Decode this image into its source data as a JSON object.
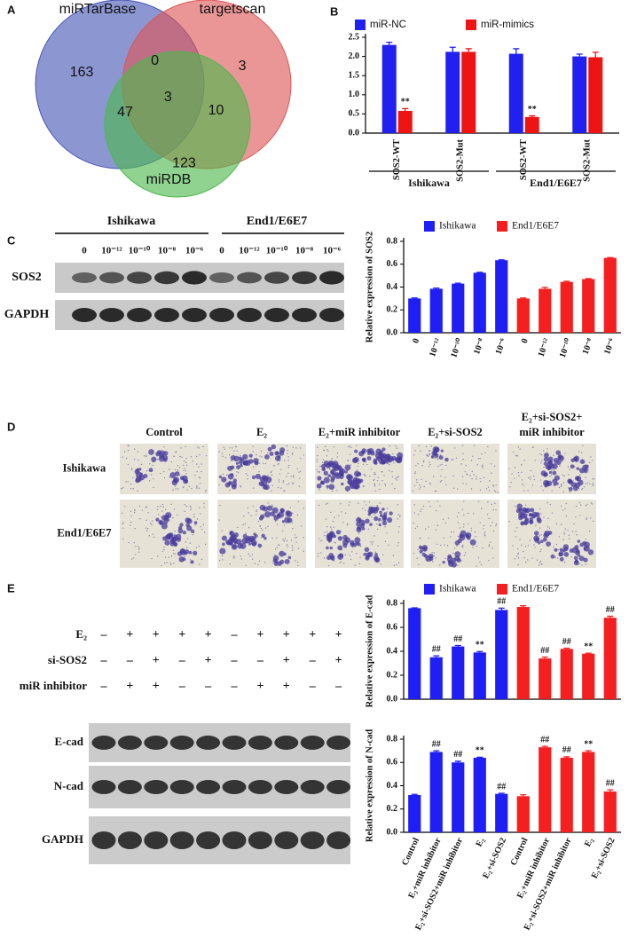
{
  "figure": {
    "panel_labels": [
      "A",
      "B",
      "C",
      "D",
      "E"
    ],
    "blot_c": {
      "groups": [
        "Ishikawa",
        "End1/E6E7"
      ],
      "lanes": [
        "0",
        "10⁻¹²",
        "10⁻¹⁰",
        "10⁻⁸",
        "10⁻⁶"
      ],
      "rows": [
        "SOS2",
        "GAPDH"
      ]
    },
    "micrographs": {
      "columns": [
        [
          "Control"
        ],
        [
          "E₂"
        ],
        [
          "E₂+miR inhibitor"
        ],
        [
          "E₂+si-SOS2"
        ],
        [
          "E₂+si-SOS2+",
          "miR inhibitor"
        ]
      ],
      "rows": [
        "Ishikawa",
        "End1/E6E7"
      ]
    },
    "blot_e": {
      "conditions": [
        {
          "label": "E₂",
          "signs": [
            "–",
            "+",
            "+",
            "+",
            "+",
            "–",
            "+",
            "+",
            "+",
            "+"
          ]
        },
        {
          "label": "si-SOS2",
          "signs": [
            "–",
            "–",
            "+",
            "–",
            "+",
            "–",
            "–",
            "+",
            "–",
            "+"
          ]
        },
        {
          "label": "miR inhibitor",
          "signs": [
            "–",
            "+",
            "+",
            "–",
            "–",
            "–",
            "+",
            "+",
            "–",
            "–"
          ]
        }
      ],
      "rows": [
        "E-cad",
        "N-cad",
        "GAPDH"
      ]
    }
  },
  "chart_data": [
    {
      "type": "venn",
      "sets": [
        {
          "name": "miRTarBase",
          "color": "#4656b4"
        },
        {
          "name": "targetscan",
          "color": "#de5656"
        },
        {
          "name": "miRDB",
          "color": "#4cb84c"
        }
      ],
      "regions": [
        {
          "sets": [
            0
          ],
          "value": 163
        },
        {
          "sets": [
            0,
            1
          ],
          "value": 0
        },
        {
          "sets": [
            1
          ],
          "value": 3
        },
        {
          "sets": [
            0,
            1,
            2
          ],
          "value": 3
        },
        {
          "sets": [
            0,
            2
          ],
          "value": 47
        },
        {
          "sets": [
            1,
            2
          ],
          "value": 10
        },
        {
          "sets": [
            2
          ],
          "value": 123
        }
      ]
    },
    {
      "type": "bar",
      "categories": [
        "SOS2-WT",
        "SOS2-Mut",
        "SOS2-WT",
        "SOS2-Mut"
      ],
      "groups": [
        {
          "label": "Ishikawa",
          "categories": [
            0,
            1
          ]
        },
        {
          "label": "End1/E6E7",
          "categories": [
            2,
            3
          ]
        }
      ],
      "series": [
        {
          "name": "miR-NC",
          "color": "#2020f0",
          "values": [
            2.3,
            2.12,
            2.07,
            2.0
          ],
          "errors": [
            0.07,
            0.12,
            0.13,
            0.06
          ]
        },
        {
          "name": "miR-mimics",
          "color": "#ee1414",
          "values": [
            0.58,
            2.12,
            0.42,
            1.98
          ],
          "errors": [
            0.06,
            0.08,
            0.03,
            0.13
          ]
        }
      ],
      "annotations": [
        {
          "series": 1,
          "index": 0,
          "text": "**"
        },
        {
          "series": 1,
          "index": 2,
          "text": "**"
        }
      ],
      "ylim": [
        0,
        2.5
      ],
      "yticks": [
        {
          "value": 0,
          "label": "0.0"
        },
        0.5,
        {
          "value": 1,
          "label": "1.0"
        },
        1.5,
        {
          "value": 2,
          "label": "2.0"
        },
        2.5
      ]
    },
    {
      "type": "bar",
      "ylabel": "Relative expression of SOS2",
      "categories": [
        "0",
        "10⁻¹²",
        "10⁻¹⁰",
        "10⁻⁸",
        "10⁻⁶"
      ],
      "series": [
        {
          "name": "Ishikawa",
          "color": "#1f1ff5",
          "values": [
            0.3,
            0.385,
            0.43,
            0.525,
            0.635
          ],
          "errors": [
            0.005,
            0.006,
            0.004,
            0.004,
            0.004
          ]
        },
        {
          "name": "End1/E6E7",
          "color": "#f51f1f",
          "values": [
            0.3,
            0.385,
            0.445,
            0.47,
            0.655
          ],
          "errors": [
            0.005,
            0.012,
            0.005,
            0.004,
            0.003
          ]
        }
      ],
      "ylim": [
        0,
        0.8
      ],
      "yticks": [
        {
          "value": 0,
          "label": "0.0"
        },
        0.2,
        0.4,
        0.6,
        0.8
      ]
    },
    {
      "type": "bar",
      "ylabel": "Relative expression of E-cad",
      "series": [
        {
          "name": "Ishikawa",
          "color": "#1f1ff5",
          "values": [
            0.76,
            0.35,
            0.44,
            0.39,
            0.745
          ],
          "errors": [
            0.003,
            0.012,
            0.008,
            0.008,
            0.015
          ]
        },
        {
          "name": "End1/E6E7",
          "color": "#f51f1f",
          "values": [
            0.77,
            0.34,
            0.42,
            0.38,
            0.68
          ],
          "errors": [
            0.01,
            0.012,
            0.006,
            0.004,
            0.012
          ]
        }
      ],
      "annotations": [
        {
          "series": 0,
          "index": 1,
          "text": "##"
        },
        {
          "series": 0,
          "index": 2,
          "text": "##"
        },
        {
          "series": 0,
          "index": 3,
          "text": "**"
        },
        {
          "series": 0,
          "index": 4,
          "text": "##"
        },
        {
          "series": 1,
          "index": 1,
          "text": "##"
        },
        {
          "series": 1,
          "index": 2,
          "text": "##"
        },
        {
          "series": 1,
          "index": 3,
          "text": "**"
        },
        {
          "series": 1,
          "index": 4,
          "text": "##"
        }
      ],
      "ylim": [
        0,
        0.8
      ],
      "yticks": [
        {
          "value": 0,
          "label": "0.0"
        },
        0.2,
        0.4,
        0.6,
        0.8
      ]
    },
    {
      "type": "bar",
      "ylabel": "Relative expression of N-cad",
      "categories": [
        "Control",
        "E₂+miR inhibitor",
        "E₂+si-SOS2+miR inhibitor",
        "E₂",
        "E₂+si-SOS2"
      ],
      "series": [
        {
          "color": "#1f1ff5",
          "values": [
            0.32,
            0.69,
            0.6,
            0.64,
            0.33
          ],
          "errors": [
            0.006,
            0.01,
            0.01,
            0.005,
            0.005
          ]
        },
        {
          "color": "#f51f1f",
          "values": [
            0.31,
            0.73,
            0.64,
            0.69,
            0.35
          ],
          "errors": [
            0.012,
            0.008,
            0.008,
            0.01,
            0.015
          ]
        }
      ],
      "annotations": [
        {
          "series": 0,
          "index": 1,
          "text": "##"
        },
        {
          "series": 0,
          "index": 2,
          "text": "##"
        },
        {
          "series": 0,
          "index": 3,
          "text": "**"
        },
        {
          "series": 0,
          "index": 4,
          "text": "##"
        },
        {
          "series": 1,
          "index": 1,
          "text": "##"
        },
        {
          "series": 1,
          "index": 2,
          "text": "##"
        },
        {
          "series": 1,
          "index": 3,
          "text": "**"
        },
        {
          "series": 1,
          "index": 4,
          "text": "##"
        }
      ],
      "ylim": [
        0,
        0.8
      ],
      "yticks": [
        {
          "value": 0,
          "label": "0.0"
        },
        0.2,
        0.4,
        0.6,
        0.8
      ]
    }
  ]
}
